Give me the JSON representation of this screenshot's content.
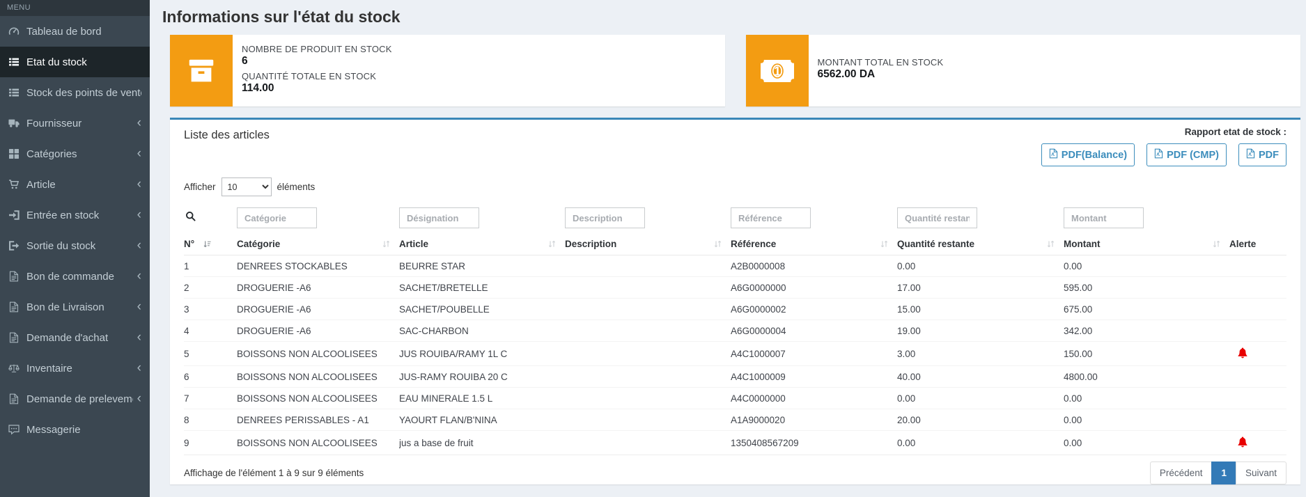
{
  "colors": {
    "accent-orange": "#f39c12",
    "panel-blue": "#3a87b8",
    "link-blue": "#3c8dbc",
    "active-page-blue": "#337ab7",
    "alert-red": "#e80000",
    "sidebar-bg": "#3b4751",
    "sidebar-active-bg": "#1d2529",
    "content-bg": "#ecf0f5"
  },
  "sidebar": {
    "menu_label": "MENU",
    "items": [
      {
        "label": "Tableau de bord",
        "icon": "dashboard-icon",
        "active": false,
        "chevron": false
      },
      {
        "label": "Etat du stock",
        "icon": "list-icon",
        "active": true,
        "chevron": false
      },
      {
        "label": "Stock des points de vente",
        "icon": "list-icon",
        "active": false,
        "chevron": false
      },
      {
        "label": "Fournisseur",
        "icon": "truck-icon",
        "active": false,
        "chevron": true
      },
      {
        "label": "Catégories",
        "icon": "grid-icon",
        "active": false,
        "chevron": true
      },
      {
        "label": "Article",
        "icon": "cart-icon",
        "active": false,
        "chevron": true
      },
      {
        "label": "Entrée en stock",
        "icon": "sign-in-icon",
        "active": false,
        "chevron": true
      },
      {
        "label": "Sortie du stock",
        "icon": "sign-out-icon",
        "active": false,
        "chevron": true
      },
      {
        "label": "Bon de commande",
        "icon": "file-icon",
        "active": false,
        "chevron": true
      },
      {
        "label": "Bon de Livraison",
        "icon": "file-icon",
        "active": false,
        "chevron": true
      },
      {
        "label": "Demande d'achat",
        "icon": "file-icon",
        "active": false,
        "chevron": true
      },
      {
        "label": "Inventaire",
        "icon": "scale-icon",
        "active": false,
        "chevron": true
      },
      {
        "label": "Demande de prelevement",
        "icon": "file-icon",
        "active": false,
        "chevron": true
      },
      {
        "label": "Messagerie",
        "icon": "comment-icon",
        "active": false,
        "chevron": false
      }
    ]
  },
  "header": {
    "title": "Informations sur l'état du stock"
  },
  "cards": [
    {
      "icon": "box-icon",
      "lines": [
        {
          "label": "NOMBRE DE PRODUIT EN STOCK",
          "value": "6"
        },
        {
          "label": "QUANTITÉ TOTALE EN STOCK",
          "value": "114.00"
        }
      ]
    },
    {
      "icon": "money-icon",
      "lines": [
        {
          "label": "MONTANT TOTAL EN STOCK",
          "value": "6562.00 DA"
        }
      ]
    }
  ],
  "panel": {
    "title": "Liste des articles",
    "report_label": "Rapport etat de stock :",
    "buttons": [
      "PDF(Balance)",
      "PDF (CMP)",
      "PDF"
    ],
    "length_control": {
      "prefix": "Afficher",
      "value": "10",
      "suffix": "éléments"
    },
    "filters": [
      "Catégorie",
      "Désignation",
      "Description",
      "Référence",
      "Quantité restante",
      "Montant"
    ],
    "table": {
      "headers": [
        {
          "label": "N°",
          "sort": "active"
        },
        {
          "label": "Catégorie",
          "sort": "both"
        },
        {
          "label": "Article",
          "sort": "both"
        },
        {
          "label": "Description",
          "sort": "both"
        },
        {
          "label": "Référence",
          "sort": "both"
        },
        {
          "label": "Quantité restante",
          "sort": "both"
        },
        {
          "label": "Montant",
          "sort": "both"
        },
        {
          "label": "Alerte",
          "sort": "none"
        }
      ],
      "rows": [
        {
          "n": "1",
          "categorie": "DENREES STOCKABLES",
          "article": "BEURRE STAR",
          "description": "",
          "reference": "A2B0000008",
          "quantite": "0.00",
          "montant": "0.00",
          "alerte": false
        },
        {
          "n": "2",
          "categorie": "DROGUERIE -A6",
          "article": "SACHET/BRETELLE",
          "description": "",
          "reference": "A6G0000000",
          "quantite": "17.00",
          "montant": "595.00",
          "alerte": false
        },
        {
          "n": "3",
          "categorie": "DROGUERIE -A6",
          "article": "SACHET/POUBELLE",
          "description": "",
          "reference": "A6G0000002",
          "quantite": "15.00",
          "montant": "675.00",
          "alerte": false
        },
        {
          "n": "4",
          "categorie": "DROGUERIE -A6",
          "article": "SAC-CHARBON",
          "description": "",
          "reference": "A6G0000004",
          "quantite": "19.00",
          "montant": "342.00",
          "alerte": false
        },
        {
          "n": "5",
          "categorie": "BOISSONS NON ALCOOLISEES",
          "article": "JUS ROUIBA/RAMY 1L C",
          "description": "",
          "reference": "A4C1000007",
          "quantite": "3.00",
          "montant": "150.00",
          "alerte": true
        },
        {
          "n": "6",
          "categorie": "BOISSONS NON ALCOOLISEES",
          "article": "JUS-RAMY ROUIBA 20 C",
          "description": "",
          "reference": "A4C1000009",
          "quantite": "40.00",
          "montant": "4800.00",
          "alerte": false
        },
        {
          "n": "7",
          "categorie": "BOISSONS NON ALCOOLISEES",
          "article": "EAU MINERALE 1.5 L",
          "description": "",
          "reference": "A4C0000000",
          "quantite": "0.00",
          "montant": "0.00",
          "alerte": false
        },
        {
          "n": "8",
          "categorie": "DENREES PERISSABLES - A1",
          "article": "YAOURT FLAN/B'NINA",
          "description": "",
          "reference": "A1A9000020",
          "quantite": "20.00",
          "montant": "0.00",
          "alerte": false
        },
        {
          "n": "9",
          "categorie": "BOISSONS NON ALCOOLISEES",
          "article": "jus a base de fruit",
          "description": "",
          "reference": "1350408567209",
          "quantite": "0.00",
          "montant": "0.00",
          "alerte": true
        }
      ]
    },
    "footer_info": "Affichage de l'élément 1 à 9 sur 9 éléments",
    "pagination": {
      "prev": "Précédent",
      "page": "1",
      "next": "Suivant"
    }
  }
}
